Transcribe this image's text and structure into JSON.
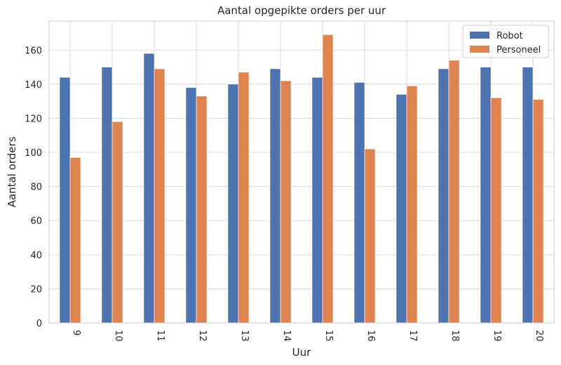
{
  "chart_data": {
    "type": "bar",
    "title": "Aantal opgepikte orders per uur",
    "xlabel": "Uur",
    "ylabel": "Aantal orders",
    "categories": [
      "9",
      "10",
      "11",
      "12",
      "13",
      "14",
      "15",
      "16",
      "17",
      "18",
      "19",
      "20"
    ],
    "series": [
      {
        "name": "Robot",
        "color": "#4c72b0",
        "values": [
          144,
          150,
          158,
          138,
          140,
          149,
          144,
          141,
          134,
          149,
          150,
          150
        ]
      },
      {
        "name": "Personeel",
        "color": "#dd8452",
        "values": [
          97,
          118,
          149,
          133,
          147,
          142,
          169,
          102,
          139,
          154,
          132,
          131
        ]
      }
    ],
    "ylim": [
      0,
      177
    ],
    "yticks": [
      0,
      20,
      40,
      60,
      80,
      100,
      120,
      140,
      160
    ],
    "grid": true,
    "legend_position": "top-right"
  }
}
